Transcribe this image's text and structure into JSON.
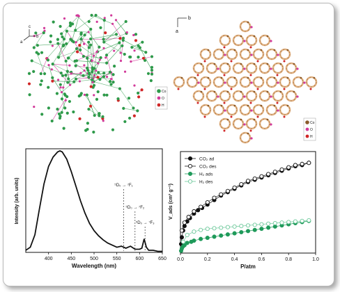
{
  "colors": {
    "co_green": "#2e9a4a",
    "o_magenta": "#d23a9a",
    "h_red": "#d02626",
    "mof_tan": "#e0b080",
    "mof_brown": "#8a5a2a",
    "co2_black": "#111111",
    "h2_green": "#1f9a5a",
    "h2_light": "#6cc89a"
  },
  "panels": {
    "top_left": {
      "axes": {
        "c": "c",
        "a": "a",
        "b": "b"
      },
      "legend": [
        {
          "label": "Co",
          "color": "#2e9a4a"
        },
        {
          "label": "O",
          "color": "#d23a9a"
        },
        {
          "label": "H",
          "color": "#d02626"
        }
      ]
    },
    "top_right": {
      "axes": {
        "a": "a",
        "b": "b"
      },
      "legend": [
        {
          "label": "Co",
          "color": "#8a5a2a"
        },
        {
          "label": "O",
          "color": "#d23a9a"
        },
        {
          "label": "H",
          "color": "#d02626"
        }
      ]
    }
  },
  "chart_data": [
    {
      "type": "line",
      "title": "",
      "xlabel": "Wavelength (nm)",
      "ylabel": "Intensity (arb. units)",
      "xlim": [
        350,
        650
      ],
      "ylim": [
        0,
        1
      ],
      "xticks": [
        400,
        450,
        500,
        550,
        600,
        650
      ],
      "x": [
        350,
        360,
        370,
        380,
        390,
        400,
        410,
        420,
        425,
        430,
        440,
        450,
        460,
        470,
        480,
        490,
        500,
        510,
        520,
        530,
        540,
        550,
        560,
        570,
        580,
        590,
        600,
        605,
        610,
        615,
        620,
        630,
        640,
        650
      ],
      "series": [
        {
          "values": [
            0.02,
            0.05,
            0.17,
            0.42,
            0.66,
            0.83,
            0.92,
            0.97,
            0.98,
            0.97,
            0.9,
            0.78,
            0.64,
            0.5,
            0.38,
            0.28,
            0.21,
            0.16,
            0.12,
            0.09,
            0.07,
            0.05,
            0.06,
            0.04,
            0.06,
            0.03,
            0.03,
            0.04,
            0.13,
            0.05,
            0.02,
            0.02,
            0.01,
            0.01
          ]
        }
      ],
      "annotations": [
        {
          "text": "⁵D₀ → ⁷F₁",
          "x": 565
        },
        {
          "text": "⁵D₀ → ⁷F₂",
          "x": 590
        },
        {
          "text": "⁵D₀ → ⁷F₃",
          "x": 612
        }
      ]
    },
    {
      "type": "scatter",
      "title": "",
      "xlabel": "P/atm",
      "ylabel": "V_ads (cm³ g⁻¹)",
      "xlim": [
        0,
        1.0
      ],
      "ylim": [
        0,
        90
      ],
      "xticks": [
        0.0,
        0.2,
        0.4,
        0.6,
        0.8,
        1.0
      ],
      "legend_position": "top-left",
      "series": [
        {
          "name": "CO₂ ad",
          "style": "filled-circle-black",
          "x": [
            0.005,
            0.01,
            0.02,
            0.03,
            0.05,
            0.07,
            0.1,
            0.13,
            0.16,
            0.2,
            0.25,
            0.3,
            0.35,
            0.4,
            0.45,
            0.5,
            0.55,
            0.6,
            0.65,
            0.7,
            0.75,
            0.8,
            0.85,
            0.9,
            0.95
          ],
          "y": [
            8,
            14,
            20,
            24,
            28,
            31,
            35,
            38,
            40,
            43,
            47,
            51,
            54,
            57,
            60,
            63,
            65,
            67,
            69,
            71,
            73,
            75,
            77,
            78,
            80
          ]
        },
        {
          "name": "CO₂ des",
          "style": "open-circle-black",
          "x": [
            0.95,
            0.9,
            0.85,
            0.8,
            0.75,
            0.7,
            0.65,
            0.6,
            0.55,
            0.5,
            0.45,
            0.4,
            0.35,
            0.3,
            0.25,
            0.2,
            0.15,
            0.1,
            0.06,
            0.03,
            0.01
          ],
          "y": [
            80,
            79,
            78,
            76,
            74,
            72,
            70,
            68,
            66,
            64,
            61,
            58,
            55,
            52,
            49,
            45,
            41,
            37,
            32,
            27,
            20
          ]
        },
        {
          "name": "H₂ ads",
          "style": "filled-circle-green",
          "x": [
            0.005,
            0.01,
            0.02,
            0.03,
            0.05,
            0.08,
            0.1,
            0.15,
            0.2,
            0.25,
            0.3,
            0.35,
            0.4,
            0.45,
            0.5,
            0.55,
            0.6,
            0.65,
            0.7,
            0.75,
            0.8,
            0.85,
            0.9,
            0.95
          ],
          "y": [
            2,
            4,
            6,
            7,
            9,
            10,
            11,
            12.5,
            13.5,
            14.5,
            15.5,
            16.5,
            17.5,
            18.5,
            19.5,
            20.5,
            21.5,
            22.5,
            23.5,
            24.5,
            25.5,
            26.5,
            27.5,
            28.5
          ]
        },
        {
          "name": "H₂ des",
          "style": "open-circle-green",
          "x": [
            0.95,
            0.9,
            0.85,
            0.8,
            0.75,
            0.7,
            0.65,
            0.6,
            0.55,
            0.5,
            0.45,
            0.4,
            0.35,
            0.3,
            0.25,
            0.2,
            0.15,
            0.1,
            0.05,
            0.02
          ],
          "y": [
            29,
            28.5,
            28,
            27.5,
            27,
            26.5,
            26,
            25.5,
            25,
            24.5,
            24,
            23.5,
            23,
            22.5,
            22,
            21.5,
            20.5,
            19,
            16,
            10
          ]
        }
      ]
    }
  ]
}
